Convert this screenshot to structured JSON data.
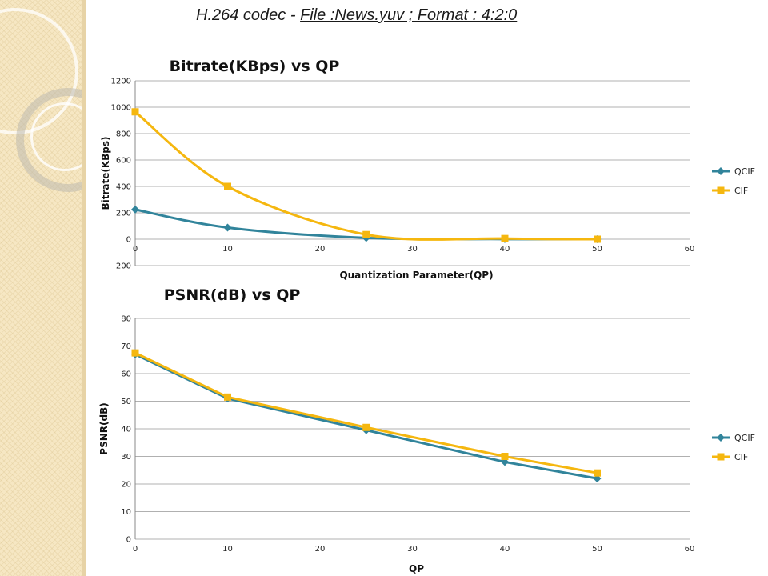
{
  "slide": {
    "title_prefix": "H.264 codec - ",
    "title_file": "File :News.yuv ; Format : 4:2:0"
  },
  "colors": {
    "qcif": "#31849b",
    "cif": "#f5b70f",
    "grid": "#b0b0b0"
  },
  "chart_data": [
    {
      "type": "line",
      "title": "Bitrate(KBps) vs QP",
      "xlabel": "Quantization Parameter(QP)",
      "ylabel": "Bitrate(KBps)",
      "xlim": [
        0,
        60
      ],
      "ylim": [
        -200,
        1200
      ],
      "xticks": [
        0,
        10,
        20,
        30,
        40,
        50,
        60
      ],
      "yticks": [
        -200,
        0,
        200,
        400,
        600,
        800,
        1000,
        1200
      ],
      "grid": true,
      "smooth": true,
      "legend_position": "right",
      "series": [
        {
          "name": "QCIF",
          "marker": "diamond",
          "x": [
            0,
            10,
            25,
            40,
            50
          ],
          "y": [
            225,
            88,
            10,
            1,
            0
          ]
        },
        {
          "name": "CIF",
          "marker": "square",
          "x": [
            0,
            10,
            25,
            40,
            50
          ],
          "y": [
            965,
            400,
            35,
            5,
            0
          ]
        }
      ]
    },
    {
      "type": "line",
      "title": "PSNR(dB) vs QP",
      "xlabel": "QP",
      "ylabel": "PSNR(dB)",
      "xlim": [
        0,
        60
      ],
      "ylim": [
        0,
        80
      ],
      "xticks": [
        0,
        10,
        20,
        30,
        40,
        50,
        60
      ],
      "yticks": [
        0,
        10,
        20,
        30,
        40,
        50,
        60,
        70,
        80
      ],
      "grid": true,
      "smooth": false,
      "legend_position": "right",
      "series": [
        {
          "name": "QCIF",
          "marker": "diamond",
          "x": [
            0,
            10,
            25,
            40,
            50
          ],
          "y": [
            67,
            51,
            39.5,
            28,
            22
          ]
        },
        {
          "name": "CIF",
          "marker": "square",
          "x": [
            0,
            10,
            25,
            40,
            50
          ],
          "y": [
            67.5,
            51.5,
            40.5,
            30,
            24
          ]
        }
      ]
    }
  ]
}
